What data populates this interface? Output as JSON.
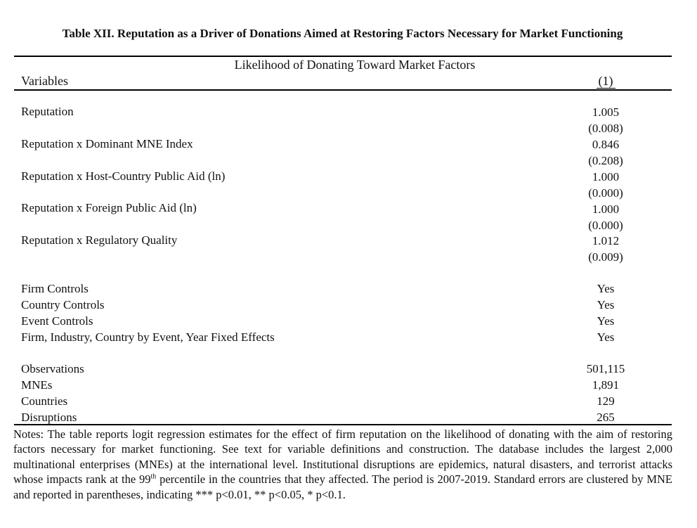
{
  "title": "Table XII. Reputation as a Driver of Donations Aimed at Restoring Factors Necessary for Market Functioning",
  "subtitle": "Likelihood of Donating Toward Market Factors",
  "variables_header": "Variables",
  "column_header": "(1)",
  "coefficients": [
    {
      "label": "Reputation",
      "estimate": "1.005",
      "se": "(0.008)"
    },
    {
      "label": "Reputation x Dominant MNE Index",
      "estimate": "0.846",
      "se": "(0.208)"
    },
    {
      "label": "Reputation x Host-Country Public Aid (ln)",
      "estimate": "1.000",
      "se": "(0.000)"
    },
    {
      "label": "Reputation x Foreign Public Aid (ln)",
      "estimate": "1.000",
      "se": "(0.000)"
    },
    {
      "label": "Reputation x Regulatory Quality",
      "estimate": "1.012",
      "se": "(0.009)"
    }
  ],
  "controls": [
    {
      "label": "Firm Controls",
      "value": "Yes"
    },
    {
      "label": "Country Controls",
      "value": "Yes"
    },
    {
      "label": "Event Controls",
      "value": "Yes"
    },
    {
      "label": "Firm, Industry, Country by Event, Year Fixed Effects",
      "value": "Yes"
    }
  ],
  "stats": [
    {
      "label": "Observations",
      "value": "501,115"
    },
    {
      "label": "MNEs",
      "value": "1,891"
    },
    {
      "label": "Countries",
      "value": "129"
    },
    {
      "label": "Disruptions",
      "value": "265"
    }
  ],
  "notes": {
    "before_sup": "Notes: The table reports logit regression estimates for the effect of firm reputation on the likelihood of donating with the aim of restoring factors necessary for market functioning. See text for variable definitions and construction. The database includes the largest 2,000 multinational enterprises (MNEs) at the international level. Institutional disruptions are epidemics, natural disasters, and terrorist attacks whose impacts rank at the 99",
    "sup": "th",
    "after_sup": " percentile in the countries that they affected. The period is 2007-2019. Standard errors are clustered by MNE and reported in parentheses, indicating *** p<0.01, ** p<0.05, * p<0.1."
  }
}
